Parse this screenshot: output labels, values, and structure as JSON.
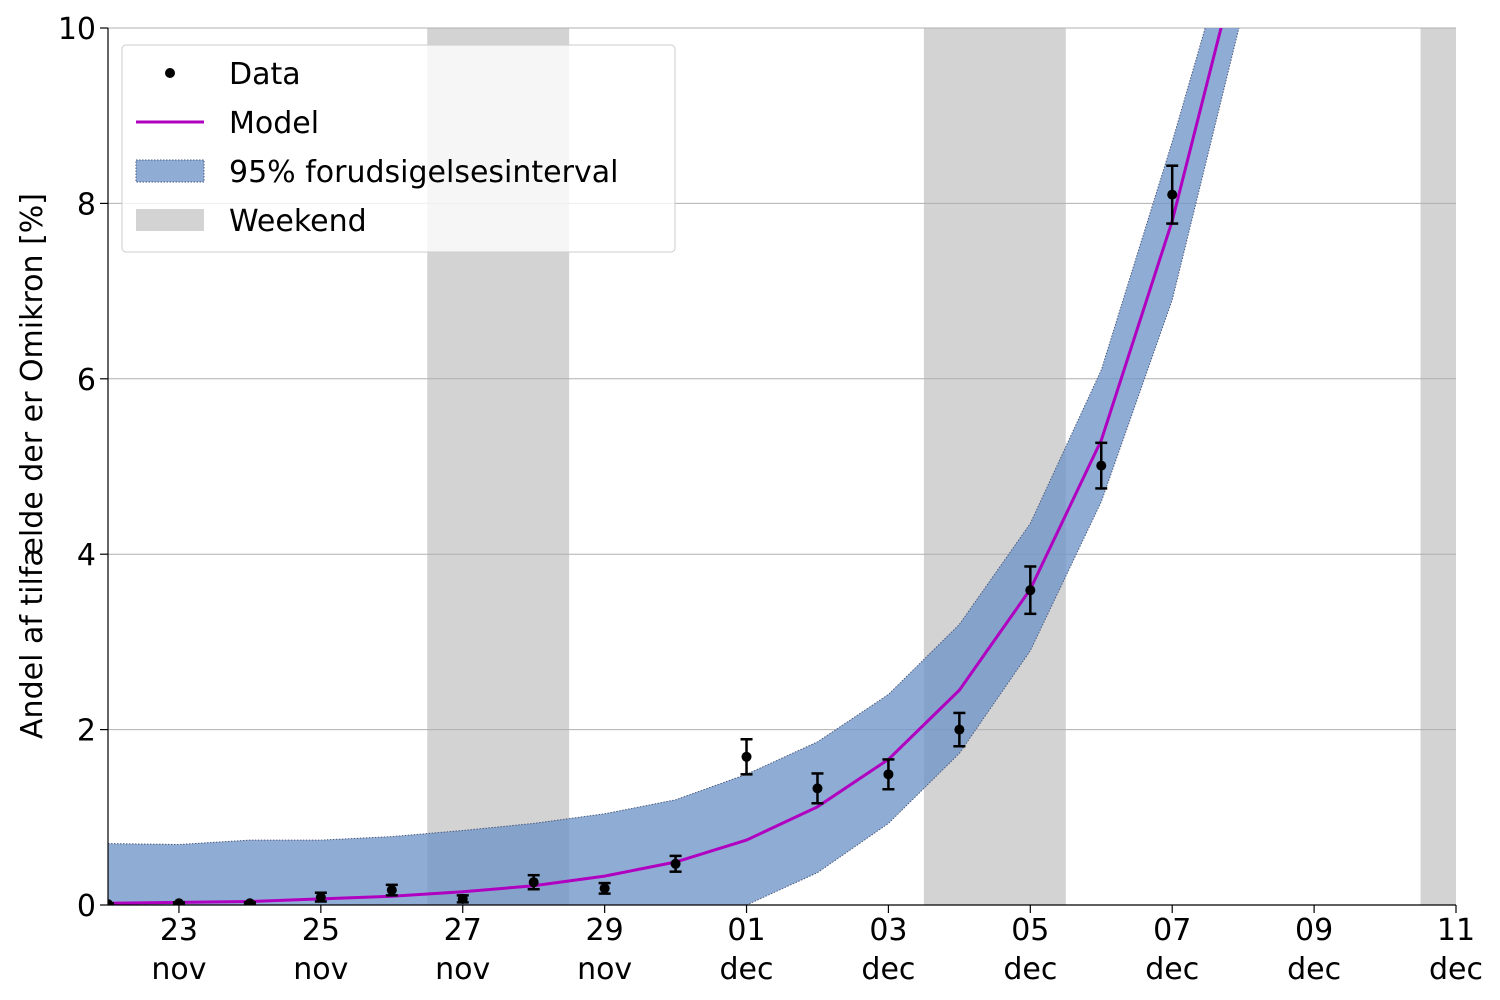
{
  "chart_data": {
    "type": "line",
    "ylabel": "Andel af tilfælde der er Omikron [%]",
    "ylim": [
      0,
      10
    ],
    "xlim": [
      "2021-11-22",
      "2021-12-11"
    ],
    "grid": "horizontal",
    "legend_position": "top-left",
    "y_ticks": [
      0,
      2,
      4,
      6,
      8,
      10
    ],
    "x_ticks": [
      {
        "date": "2021-11-23",
        "day": "23",
        "month": "nov"
      },
      {
        "date": "2021-11-25",
        "day": "25",
        "month": "nov"
      },
      {
        "date": "2021-11-27",
        "day": "27",
        "month": "nov"
      },
      {
        "date": "2021-11-29",
        "day": "29",
        "month": "nov"
      },
      {
        "date": "2021-12-01",
        "day": "01",
        "month": "dec"
      },
      {
        "date": "2021-12-03",
        "day": "03",
        "month": "dec"
      },
      {
        "date": "2021-12-05",
        "day": "05",
        "month": "dec"
      },
      {
        "date": "2021-12-07",
        "day": "07",
        "month": "dec"
      },
      {
        "date": "2021-12-09",
        "day": "09",
        "month": "dec"
      },
      {
        "date": "2021-12-11",
        "day": "11",
        "month": "dec"
      }
    ],
    "weekends": [
      {
        "start": "2021-11-26T12:00",
        "end": "2021-11-28T12:00"
      },
      {
        "start": "2021-12-03T12:00",
        "end": "2021-12-05T12:00"
      },
      {
        "start": "2021-12-10T12:00",
        "end": "2021-12-11"
      }
    ],
    "series": [
      {
        "name": "Data",
        "kind": "points_with_errorbars",
        "color": "#000000",
        "points": [
          {
            "x": "2021-11-22",
            "y": 0.01,
            "err": 0.01
          },
          {
            "x": "2021-11-23",
            "y": 0.02,
            "err": 0.01
          },
          {
            "x": "2021-11-24",
            "y": 0.02,
            "err": 0.01
          },
          {
            "x": "2021-11-25",
            "y": 0.09,
            "err": 0.05
          },
          {
            "x": "2021-11-26",
            "y": 0.17,
            "err": 0.06
          },
          {
            "x": "2021-11-27",
            "y": 0.07,
            "err": 0.04
          },
          {
            "x": "2021-11-28",
            "y": 0.26,
            "err": 0.08
          },
          {
            "x": "2021-11-29",
            "y": 0.19,
            "err": 0.06
          },
          {
            "x": "2021-11-30",
            "y": 0.47,
            "err": 0.09
          },
          {
            "x": "2021-12-01",
            "y": 1.69,
            "err": 0.2
          },
          {
            "x": "2021-12-02",
            "y": 1.33,
            "err": 0.17
          },
          {
            "x": "2021-12-03",
            "y": 1.49,
            "err": 0.17
          },
          {
            "x": "2021-12-04",
            "y": 2.0,
            "err": 0.19
          },
          {
            "x": "2021-12-05",
            "y": 3.59,
            "err": 0.27
          },
          {
            "x": "2021-12-06",
            "y": 5.01,
            "err": 0.26
          },
          {
            "x": "2021-12-07",
            "y": 8.1,
            "err": 0.33
          }
        ]
      },
      {
        "name": "Model",
        "kind": "line",
        "color": "#b000c0",
        "points": [
          {
            "x": "2021-11-22",
            "y": 0.02
          },
          {
            "x": "2021-11-23",
            "y": 0.03
          },
          {
            "x": "2021-11-24",
            "y": 0.04
          },
          {
            "x": "2021-11-25",
            "y": 0.07
          },
          {
            "x": "2021-11-26",
            "y": 0.1
          },
          {
            "x": "2021-11-27",
            "y": 0.15
          },
          {
            "x": "2021-11-28",
            "y": 0.22
          },
          {
            "x": "2021-11-29",
            "y": 0.33
          },
          {
            "x": "2021-11-30",
            "y": 0.49
          },
          {
            "x": "2021-12-01",
            "y": 0.74
          },
          {
            "x": "2021-12-02",
            "y": 1.12
          },
          {
            "x": "2021-12-03",
            "y": 1.66
          },
          {
            "x": "2021-12-04",
            "y": 2.45
          },
          {
            "x": "2021-12-05",
            "y": 3.6
          },
          {
            "x": "2021-12-06",
            "y": 5.3
          },
          {
            "x": "2021-12-07",
            "y": 7.8
          },
          {
            "x": "2021-12-08",
            "y": 11.0
          }
        ]
      },
      {
        "name": "95% forudsigelsesinterval",
        "kind": "band",
        "color": "#6f96c8",
        "points": [
          {
            "x": "2021-11-22",
            "lower": 0.0,
            "upper": 0.7
          },
          {
            "x": "2021-11-23",
            "lower": 0.0,
            "upper": 0.69
          },
          {
            "x": "2021-11-24",
            "lower": 0.0,
            "upper": 0.74
          },
          {
            "x": "2021-11-25",
            "lower": 0.0,
            "upper": 0.74
          },
          {
            "x": "2021-11-26",
            "lower": 0.0,
            "upper": 0.78
          },
          {
            "x": "2021-11-27",
            "lower": 0.0,
            "upper": 0.85
          },
          {
            "x": "2021-11-28",
            "lower": 0.0,
            "upper": 0.93
          },
          {
            "x": "2021-11-29",
            "lower": 0.0,
            "upper": 1.04
          },
          {
            "x": "2021-11-30",
            "lower": 0.0,
            "upper": 1.2
          },
          {
            "x": "2021-12-01",
            "lower": 0.0,
            "upper": 1.49
          },
          {
            "x": "2021-12-02",
            "lower": 0.37,
            "upper": 1.86
          },
          {
            "x": "2021-12-03",
            "lower": 0.93,
            "upper": 2.4
          },
          {
            "x": "2021-12-04",
            "lower": 1.73,
            "upper": 3.2
          },
          {
            "x": "2021-12-05",
            "lower": 2.9,
            "upper": 4.35
          },
          {
            "x": "2021-12-06",
            "lower": 4.6,
            "upper": 6.1
          },
          {
            "x": "2021-12-07",
            "lower": 6.9,
            "upper": 8.7
          },
          {
            "x": "2021-12-08",
            "lower": 10.2,
            "upper": 11.5
          }
        ]
      }
    ],
    "legend": [
      {
        "label": "Data",
        "symbol": "point"
      },
      {
        "label": "Model",
        "symbol": "line"
      },
      {
        "label": "95% forudsigelsesinterval",
        "symbol": "band"
      },
      {
        "label": "Weekend",
        "symbol": "weekend"
      }
    ],
    "colors": {
      "weekend": "#d3d3d3",
      "band": "#6f96c8",
      "band_edge": "#4a5a80",
      "model": "#b000c0",
      "data": "#000000",
      "grid": "#b0b0b0"
    }
  }
}
